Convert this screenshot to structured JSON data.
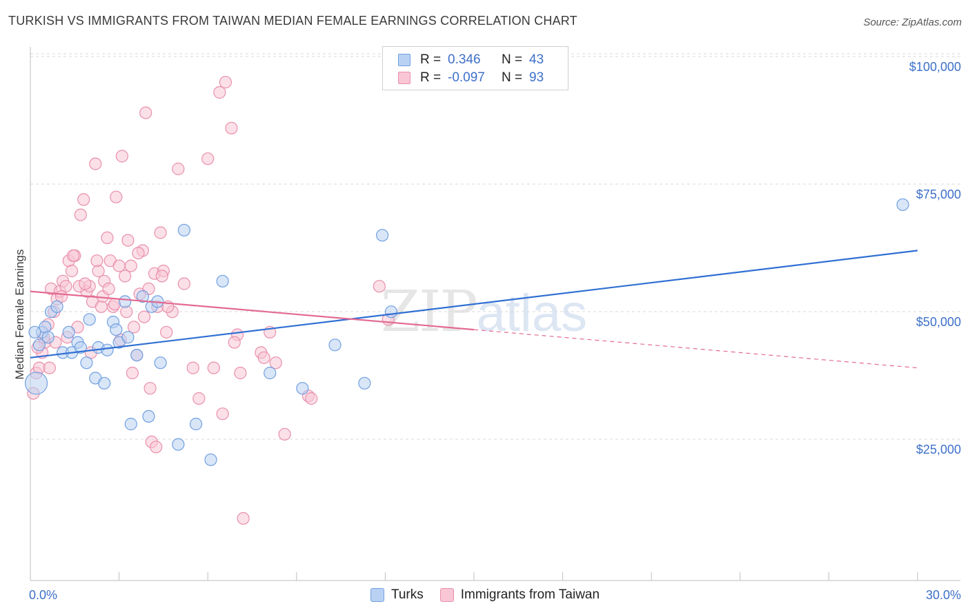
{
  "title": "TURKISH VS IMMIGRANTS FROM TAIWAN MEDIAN FEMALE EARNINGS CORRELATION CHART",
  "source": "Source: ZipAtlas.com",
  "watermark": {
    "zip": "ZIP",
    "atlas": "atlas"
  },
  "legend": {
    "rows": [
      {
        "r_label": "R =",
        "r_value": "0.346",
        "n_label": "N =",
        "n_value": "43"
      },
      {
        "r_label": "R =",
        "r_value": "-0.097",
        "n_label": "N =",
        "n_value": "93"
      }
    ]
  },
  "bottom_legend": {
    "a": "Turks",
    "b": "Immigrants from Taiwan"
  },
  "colors": {
    "turks_fill": "#b9d2f3",
    "turks_stroke": "#6f9fe0",
    "turks_line": "#2f6fd3",
    "taiwan_fill": "#f8c6d5",
    "taiwan_stroke": "#e98fab",
    "taiwan_line": "#e36a92",
    "tick": "#3d6fc9",
    "grid": "#d9d9d9"
  },
  "chart_data": {
    "type": "scatter",
    "title": "TURKISH VS IMMIGRANTS FROM TAIWAN MEDIAN FEMALE EARNINGS CORRELATION CHART",
    "xlabel": "",
    "ylabel": "Median Female Earnings",
    "xlim": [
      0,
      30
    ],
    "ylim": [
      0,
      105000
    ],
    "x_tick_labels": [
      "0.0%",
      "30.0%"
    ],
    "y_ticks": [
      25000,
      50000,
      75000,
      100000
    ],
    "y_tick_labels": [
      "$25,000",
      "$50,000",
      "$75,000",
      "$100,000"
    ],
    "series": [
      {
        "name": "Turks",
        "r": 0.346,
        "n": 43,
        "trend": {
          "x": [
            0,
            30
          ],
          "y": [
            43000,
            64000
          ]
        },
        "points": [
          [
            0.2,
            38000
          ],
          [
            0.3,
            45500
          ],
          [
            0.4,
            48000
          ],
          [
            0.5,
            49000
          ],
          [
            0.6,
            47000
          ],
          [
            0.7,
            52000
          ],
          [
            0.9,
            53000
          ],
          [
            1.1,
            44000
          ],
          [
            1.3,
            48000
          ],
          [
            1.4,
            44000
          ],
          [
            1.6,
            46000
          ],
          [
            1.7,
            45000
          ],
          [
            1.9,
            42000
          ],
          [
            2.0,
            50500
          ],
          [
            2.2,
            39000
          ],
          [
            2.3,
            45000
          ],
          [
            2.5,
            38000
          ],
          [
            2.6,
            44500
          ],
          [
            2.8,
            50000
          ],
          [
            2.9,
            48500
          ],
          [
            3.0,
            46000
          ],
          [
            3.2,
            54000
          ],
          [
            3.3,
            47000
          ],
          [
            3.4,
            30000
          ],
          [
            3.6,
            43500
          ],
          [
            3.8,
            55000
          ],
          [
            4.0,
            31500
          ],
          [
            4.1,
            53000
          ],
          [
            4.3,
            54000
          ],
          [
            4.4,
            42000
          ],
          [
            5.2,
            68000
          ],
          [
            5.0,
            26000
          ],
          [
            5.6,
            30000
          ],
          [
            6.1,
            23000
          ],
          [
            6.5,
            58000
          ],
          [
            8.1,
            40000
          ],
          [
            9.2,
            37000
          ],
          [
            10.3,
            45500
          ],
          [
            11.3,
            38000
          ],
          [
            11.9,
            67000
          ],
          [
            12.2,
            52000
          ],
          [
            29.5,
            73000
          ],
          [
            0.15,
            48000
          ]
        ]
      },
      {
        "name": "Immigrants from Taiwan",
        "r": -0.097,
        "n": 93,
        "trend": {
          "x": [
            0,
            15
          ],
          "y": [
            56000,
            48500
          ]
        },
        "trend_dashed": {
          "x": [
            15,
            30
          ],
          "y": [
            48500,
            41000
          ]
        },
        "points": [
          [
            0.1,
            36000
          ],
          [
            0.2,
            40000
          ],
          [
            0.3,
            41000
          ],
          [
            0.4,
            44000
          ],
          [
            0.5,
            46000
          ],
          [
            0.6,
            49500
          ],
          [
            0.7,
            56500
          ],
          [
            0.8,
            52000
          ],
          [
            0.9,
            54500
          ],
          [
            1.0,
            56000
          ],
          [
            1.1,
            58000
          ],
          [
            1.2,
            57000
          ],
          [
            1.3,
            62000
          ],
          [
            1.4,
            60000
          ],
          [
            1.5,
            63000
          ],
          [
            1.6,
            49000
          ],
          [
            1.7,
            71000
          ],
          [
            1.8,
            74000
          ],
          [
            1.9,
            56000
          ],
          [
            2.0,
            57000
          ],
          [
            2.1,
            54000
          ],
          [
            2.2,
            81000
          ],
          [
            2.3,
            60000
          ],
          [
            2.4,
            53000
          ],
          [
            2.5,
            58000
          ],
          [
            2.6,
            66500
          ],
          [
            2.7,
            62000
          ],
          [
            2.8,
            53000
          ],
          [
            2.9,
            74500
          ],
          [
            3.0,
            61000
          ],
          [
            3.1,
            82500
          ],
          [
            3.2,
            59000
          ],
          [
            3.3,
            66000
          ],
          [
            3.4,
            61000
          ],
          [
            3.5,
            49000
          ],
          [
            3.6,
            43500
          ],
          [
            3.7,
            55500
          ],
          [
            3.8,
            64000
          ],
          [
            3.9,
            91000
          ],
          [
            4.0,
            56500
          ],
          [
            4.1,
            26500
          ],
          [
            4.2,
            59500
          ],
          [
            4.3,
            53000
          ],
          [
            4.4,
            67500
          ],
          [
            4.5,
            60000
          ],
          [
            4.6,
            48000
          ],
          [
            4.8,
            52000
          ],
          [
            5.0,
            80000
          ],
          [
            5.2,
            57500
          ],
          [
            5.5,
            41000
          ],
          [
            5.7,
            35000
          ],
          [
            6.0,
            82000
          ],
          [
            6.2,
            41000
          ],
          [
            6.4,
            95000
          ],
          [
            6.5,
            32000
          ],
          [
            6.6,
            97000
          ],
          [
            6.8,
            88000
          ],
          [
            7.0,
            47500
          ],
          [
            7.1,
            40000
          ],
          [
            7.2,
            11500
          ],
          [
            7.8,
            44000
          ],
          [
            7.9,
            43000
          ],
          [
            8.1,
            48000
          ],
          [
            8.3,
            42000
          ],
          [
            8.6,
            28000
          ],
          [
            9.4,
            35500
          ],
          [
            9.5,
            35000
          ],
          [
            11.8,
            57000
          ],
          [
            12.1,
            50500
          ],
          [
            0.25,
            45000
          ],
          [
            0.45,
            47000
          ],
          [
            0.65,
            41000
          ],
          [
            0.85,
            46000
          ],
          [
            1.05,
            55000
          ],
          [
            1.25,
            47000
          ],
          [
            1.45,
            63000
          ],
          [
            1.65,
            57000
          ],
          [
            1.85,
            57500
          ],
          [
            2.05,
            44000
          ],
          [
            2.25,
            62000
          ],
          [
            2.45,
            55000
          ],
          [
            2.65,
            56500
          ],
          [
            2.85,
            53500
          ],
          [
            3.05,
            46500
          ],
          [
            3.25,
            52000
          ],
          [
            3.45,
            40000
          ],
          [
            3.65,
            63500
          ],
          [
            3.85,
            51000
          ],
          [
            4.05,
            37000
          ],
          [
            4.25,
            25500
          ],
          [
            4.45,
            59000
          ],
          [
            4.65,
            53000
          ],
          [
            6.9,
            46000
          ]
        ]
      }
    ]
  }
}
